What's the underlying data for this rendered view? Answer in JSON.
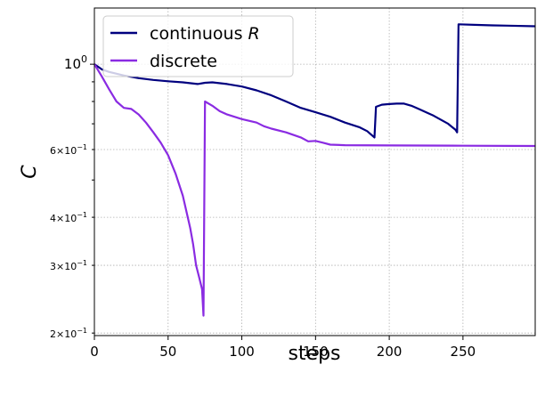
{
  "chart_data": {
    "type": "line",
    "title": "",
    "xlabel": "steps",
    "ylabel": "C",
    "xlim": [
      0,
      299
    ],
    "ylim": [
      0.197,
      1.4
    ],
    "yscale": "log",
    "grid": true,
    "grid_style": "dotted",
    "legend_position": "top-left",
    "x_ticks": [
      0,
      50,
      100,
      150,
      200,
      250
    ],
    "x_tick_labels": [
      "0",
      "50",
      "100",
      "150",
      "200",
      "250"
    ],
    "y_ticks": [
      {
        "value": 1.0,
        "base": "10",
        "exp": "0",
        "coef": "",
        "major": true
      },
      {
        "value": 0.6,
        "base": "10",
        "exp": "−1",
        "coef": "6",
        "major": false
      },
      {
        "value": 0.4,
        "base": "10",
        "exp": "−1",
        "coef": "4",
        "major": false
      },
      {
        "value": 0.3,
        "base": "10",
        "exp": "−1",
        "coef": "3",
        "major": false
      },
      {
        "value": 0.2,
        "base": "10",
        "exp": "−1",
        "coef": "2",
        "major": false
      }
    ],
    "series": [
      {
        "name": "continuous",
        "name_italic": "R",
        "color": "#00007f",
        "points": [
          [
            0,
            1.0
          ],
          [
            5,
            0.97
          ],
          [
            10,
            0.955
          ],
          [
            20,
            0.935
          ],
          [
            30,
            0.92
          ],
          [
            40,
            0.91
          ],
          [
            50,
            0.903
          ],
          [
            60,
            0.897
          ],
          [
            70,
            0.888
          ],
          [
            75,
            0.895
          ],
          [
            80,
            0.897
          ],
          [
            90,
            0.888
          ],
          [
            100,
            0.875
          ],
          [
            110,
            0.855
          ],
          [
            120,
            0.83
          ],
          [
            130,
            0.8
          ],
          [
            140,
            0.77
          ],
          [
            150,
            0.75
          ],
          [
            160,
            0.73
          ],
          [
            170,
            0.705
          ],
          [
            180,
            0.685
          ],
          [
            185,
            0.67
          ],
          [
            190,
            0.645
          ],
          [
            191,
            0.775
          ],
          [
            195,
            0.785
          ],
          [
            200,
            0.788
          ],
          [
            205,
            0.79
          ],
          [
            210,
            0.79
          ],
          [
            215,
            0.78
          ],
          [
            220,
            0.765
          ],
          [
            230,
            0.735
          ],
          [
            240,
            0.7
          ],
          [
            245,
            0.675
          ],
          [
            246,
            0.665
          ],
          [
            247,
            1.27
          ],
          [
            260,
            1.265
          ],
          [
            270,
            1.262
          ],
          [
            280,
            1.26
          ],
          [
            299,
            1.255
          ]
        ]
      },
      {
        "name": "discrete",
        "name_italic": "",
        "color": "#8a2be2",
        "points": [
          [
            0,
            1.0
          ],
          [
            5,
            0.93
          ],
          [
            10,
            0.86
          ],
          [
            15,
            0.8
          ],
          [
            20,
            0.77
          ],
          [
            25,
            0.765
          ],
          [
            30,
            0.74
          ],
          [
            35,
            0.705
          ],
          [
            40,
            0.665
          ],
          [
            45,
            0.625
          ],
          [
            50,
            0.58
          ],
          [
            55,
            0.52
          ],
          [
            60,
            0.455
          ],
          [
            63,
            0.405
          ],
          [
            65,
            0.375
          ],
          [
            67,
            0.34
          ],
          [
            69,
            0.3
          ],
          [
            71,
            0.28
          ],
          [
            73,
            0.26
          ],
          [
            74,
            0.222
          ],
          [
            75,
            0.8
          ],
          [
            80,
            0.78
          ],
          [
            85,
            0.755
          ],
          [
            90,
            0.74
          ],
          [
            100,
            0.72
          ],
          [
            110,
            0.705
          ],
          [
            115,
            0.69
          ],
          [
            120,
            0.68
          ],
          [
            130,
            0.665
          ],
          [
            140,
            0.645
          ],
          [
            145,
            0.63
          ],
          [
            150,
            0.632
          ],
          [
            155,
            0.625
          ],
          [
            160,
            0.618
          ],
          [
            170,
            0.616
          ],
          [
            200,
            0.615
          ],
          [
            250,
            0.614
          ],
          [
            299,
            0.613
          ]
        ]
      }
    ]
  }
}
